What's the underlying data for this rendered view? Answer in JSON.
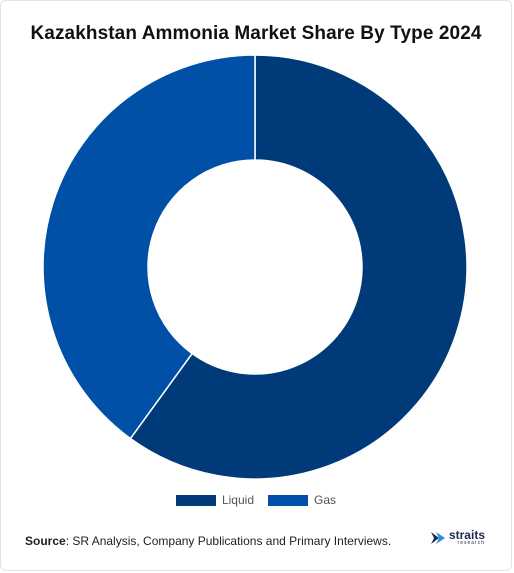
{
  "chart_data": {
    "type": "pie",
    "title": "Kazakhstan Ammonia Market Share By Type 2024",
    "donut": true,
    "categories": [
      "Liquid",
      "Gas"
    ],
    "values": [
      60,
      40
    ],
    "colors": [
      "#003a78",
      "#0050a8"
    ],
    "legend_position": "bottom-center"
  },
  "source": {
    "label": "Source",
    "text": "SR Analysis, Company Publications and Primary Interviews."
  },
  "logo": {
    "word": "straits",
    "sub": "research",
    "icon": "straits-logo-icon"
  }
}
